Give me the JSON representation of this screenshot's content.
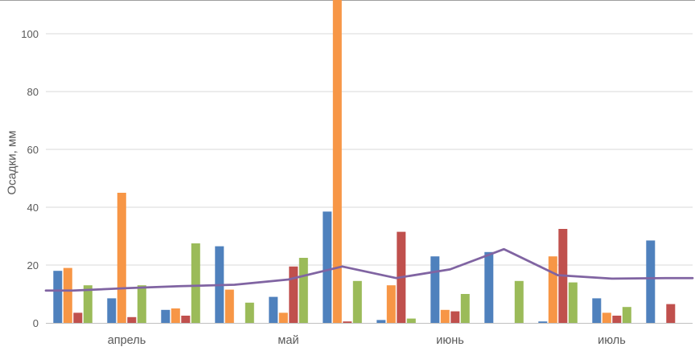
{
  "page": {
    "background": "#ffffff",
    "description": "Grouped bar chart with a trend line showing precipitation (mm) per ten-day period for April through July"
  },
  "chart_data": {
    "type": "bar",
    "subtype": "grouped-bars-with-line-overlay",
    "title": "",
    "xlabel": "",
    "ylabel": "Осадки, мм",
    "yticks": [
      0,
      20,
      40,
      60,
      80,
      100
    ],
    "ylim": [
      0,
      112
    ],
    "grid": "horizontal",
    "legend": "none",
    "n_groups": 12,
    "month_labels": [
      "апрель",
      "май",
      "июнь",
      "июль"
    ],
    "month_label_group_index": [
      1,
      4,
      7,
      10
    ],
    "series": [
      {
        "name": "series-blue",
        "color": "#4F81BD",
        "values": [
          18,
          8.5,
          4.5,
          26.5,
          9,
          38.5,
          1,
          23,
          24.5,
          0.5,
          8.5,
          28.5
        ]
      },
      {
        "name": "series-orange",
        "color": "#F79646",
        "values": [
          19,
          45,
          5,
          11.5,
          3.5,
          112,
          13,
          4.5,
          0,
          23,
          3.5,
          0
        ]
      },
      {
        "name": "series-red",
        "color": "#C0504D",
        "values": [
          3.5,
          2,
          2.5,
          0,
          19.5,
          0.5,
          31.5,
          4,
          0,
          32.5,
          2.5,
          6.5
        ]
      },
      {
        "name": "series-green",
        "color": "#9BBB59",
        "values": [
          13,
          13,
          27.5,
          7,
          22.5,
          14.5,
          1.5,
          10,
          14.5,
          14,
          5.5,
          0
        ]
      }
    ],
    "line": {
      "name": "trend-line",
      "color": "#8064A2",
      "width": 2.75,
      "values": [
        11.2,
        12,
        12.7,
        13.2,
        15,
        19.5,
        15.5,
        18.5,
        25.5,
        16.5,
        15.3,
        15.5
      ]
    },
    "style": {
      "gridline_color": "#D9D9D9",
      "axis_line_color": "#BFBFBF",
      "text_color": "#595959",
      "top_border_color": "#9E9E9E",
      "tick_font_size": 13,
      "month_font_size": 14.5
    }
  }
}
